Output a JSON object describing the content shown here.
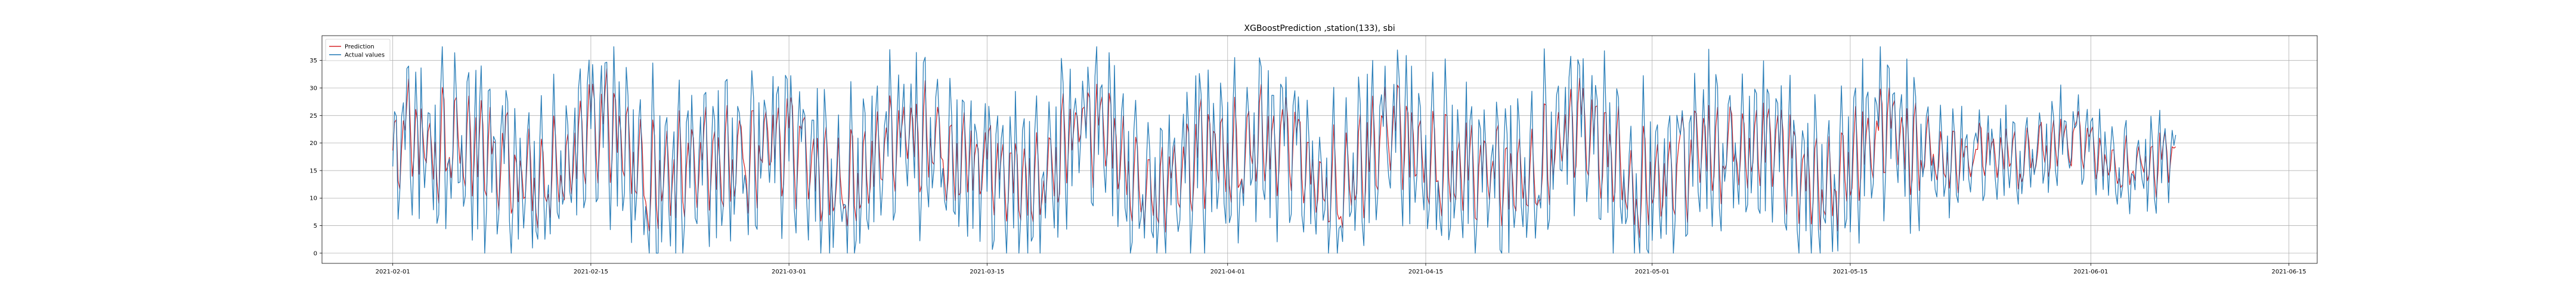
{
  "chart_data": {
    "type": "line",
    "title": "XGBoostPrediction ,station(133), sbi",
    "xlabel": "",
    "ylabel": "",
    "x_range": [
      "2021-01-27",
      "2021-06-17"
    ],
    "data_range": [
      "2021-02-01",
      "2021-06-07"
    ],
    "ylim": [
      -1.85,
      39.5
    ],
    "grid": true,
    "legend_position": "upper-left",
    "x_ticks": [
      "2021-02-01",
      "2021-02-15",
      "2021-03-01",
      "2021-03-15",
      "2021-04-01",
      "2021-04-15",
      "2021-05-01",
      "2021-05-15",
      "2021-06-01",
      "2021-06-15"
    ],
    "y_ticks": [
      0,
      5,
      10,
      15,
      20,
      25,
      30,
      35
    ],
    "series": [
      {
        "name": "Prediction",
        "color": "#d62728"
      },
      {
        "name": "Actual values",
        "color": "#1f77b4"
      }
    ],
    "series_description": "Hourly bike availability oscillating roughly between 0 and 37 from 2021-02-01 to 2021-06-07; prediction tracks actual values closely."
  }
}
